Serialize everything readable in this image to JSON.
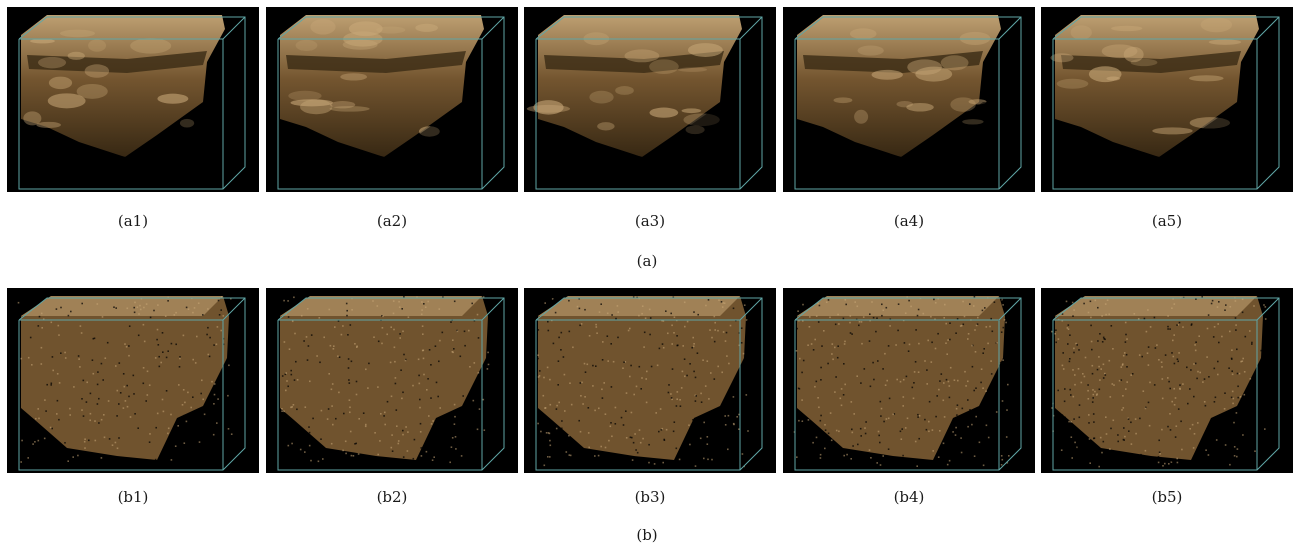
{
  "figure": {
    "rows": [
      {
        "id": "a",
        "label": "(a)",
        "render_style": "smooth-volume",
        "panels": [
          {
            "id": "a1",
            "caption": "(a1)"
          },
          {
            "id": "a2",
            "caption": "(a2)"
          },
          {
            "id": "a3",
            "caption": "(a3)"
          },
          {
            "id": "a4",
            "caption": "(a4)"
          },
          {
            "id": "a5",
            "caption": "(a5)"
          }
        ]
      },
      {
        "id": "b",
        "label": "(b)",
        "render_style": "speckled-volume",
        "panels": [
          {
            "id": "b1",
            "caption": "(b1)"
          },
          {
            "id": "b2",
            "caption": "(b2)"
          },
          {
            "id": "b3",
            "caption": "(b3)"
          },
          {
            "id": "b4",
            "caption": "(b4)"
          },
          {
            "id": "b5",
            "caption": "(b5)"
          }
        ]
      }
    ],
    "colors": {
      "background": "#000000",
      "bounding_box": "#5fa6a6",
      "tissue_dark": "#3a2a14",
      "tissue_mid": "#7a5a32",
      "tissue_light": "#c8a878"
    }
  }
}
